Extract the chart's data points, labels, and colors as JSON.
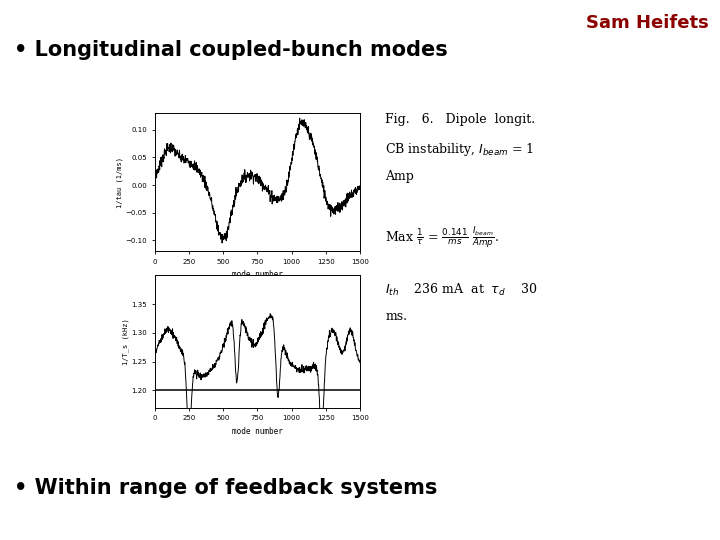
{
  "background_color": "#ffffff",
  "title_author": "Sam Heifets",
  "title_author_color": "#8B0000",
  "title_author_fontsize": 13,
  "bullet1": "• Longitudinal coupled-bunch modes",
  "bullet1_fontsize": 15,
  "bullet1_color": "#000000",
  "bullet2": "• Within range of feedback systems",
  "bullet2_fontsize": 15,
  "bullet2_color": "#000000",
  "fig_caption_fontsize": 9,
  "panel1_xlim": [
    0,
    1500
  ],
  "panel1_ylim": [
    -0.12,
    0.13
  ],
  "panel1_yticks": [
    -0.1,
    -0.05,
    0,
    0.05,
    0.1
  ],
  "panel1_xticks": [
    0,
    250,
    500,
    750,
    1000,
    1250,
    1500
  ],
  "panel1_xlabel": "mode number",
  "panel1_ylabel": "1/tau (1/ms)",
  "panel2_xlim": [
    0,
    1500
  ],
  "panel2_ylim": [
    1.17,
    1.4
  ],
  "panel2_yticks": [
    1.2,
    1.25,
    1.3,
    1.35
  ],
  "panel2_xticks": [
    0,
    250,
    500,
    750,
    1000,
    1250,
    1500
  ],
  "panel2_xlabel": "mode number",
  "panel2_ylabel": "1/T_s (kHz)"
}
